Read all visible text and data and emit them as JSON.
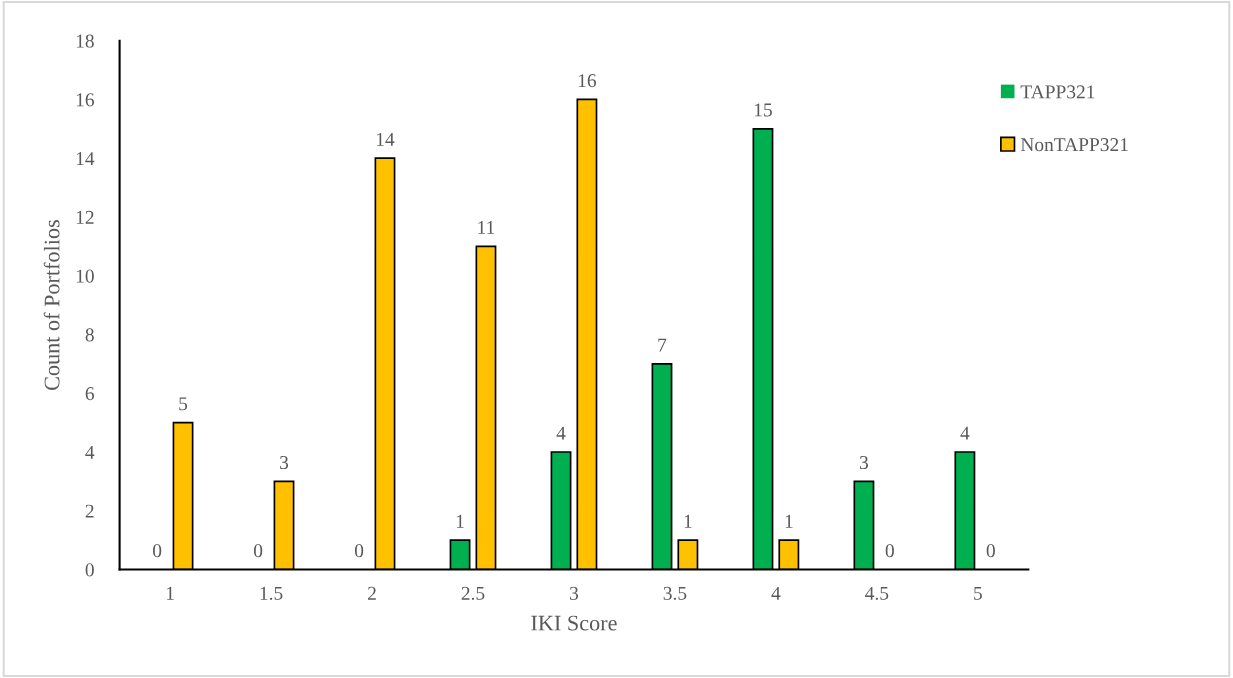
{
  "chart_data": {
    "type": "bar",
    "xlabel": "IKI Score",
    "ylabel": "Count of Portfolios",
    "categories": [
      "1",
      "1.5",
      "2",
      "2.5",
      "3",
      "3.5",
      "4",
      "4.5",
      "5"
    ],
    "series": [
      {
        "name": "TAPP321",
        "color": "#00b050",
        "values": [
          0,
          0,
          0,
          1,
          4,
          7,
          15,
          3,
          4
        ]
      },
      {
        "name": "NonTAPP321",
        "color": "#ffc000",
        "values": [
          5,
          3,
          14,
          11,
          16,
          1,
          1,
          0,
          0
        ]
      }
    ],
    "ylim": [
      0,
      18
    ],
    "yticks": [
      0,
      2,
      4,
      6,
      8,
      10,
      12,
      14,
      16,
      18
    ],
    "data_labels": true,
    "legend": "top right",
    "grid": false
  }
}
